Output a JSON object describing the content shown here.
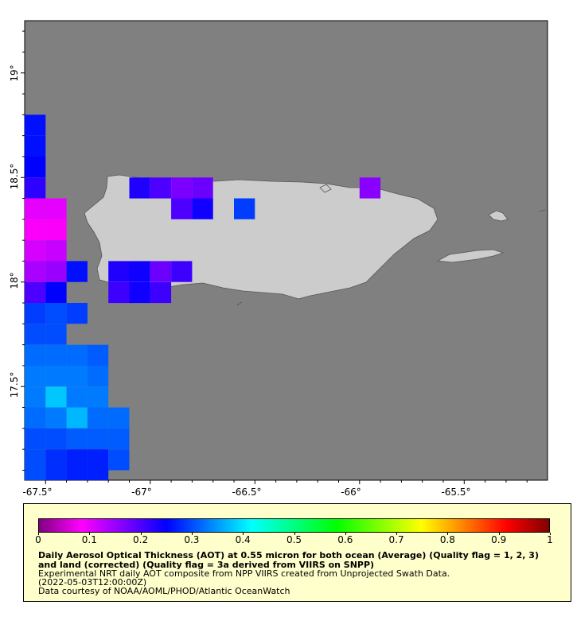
{
  "map": {
    "background_color": "#808080",
    "land_color": "#cccccc",
    "x_ticks": [
      "-67.5°",
      "-67°",
      "-66.5°",
      "-66°",
      "-65.5°"
    ],
    "y_ticks": [
      "19°",
      "18.5°",
      "18°",
      "17.5°"
    ],
    "aot_pixels": [
      {
        "lon": -67.55,
        "lat": 18.75,
        "aot": 0.26
      },
      {
        "lon": -67.55,
        "lat": 18.65,
        "aot": 0.26
      },
      {
        "lon": -67.55,
        "lat": 18.55,
        "aot": 0.25
      },
      {
        "lon": -67.55,
        "lat": 18.45,
        "aot": 0.22
      },
      {
        "lon": -67.55,
        "lat": 18.35,
        "aot": 0.1
      },
      {
        "lon": -67.45,
        "lat": 18.35,
        "aot": 0.1
      },
      {
        "lon": -67.55,
        "lat": 18.25,
        "aot": 0.08
      },
      {
        "lon": -67.45,
        "lat": 18.25,
        "aot": 0.08
      },
      {
        "lon": -67.55,
        "lat": 18.15,
        "aot": 0.11
      },
      {
        "lon": -67.45,
        "lat": 18.15,
        "aot": 0.12
      },
      {
        "lon": -67.55,
        "lat": 18.05,
        "aot": 0.14
      },
      {
        "lon": -67.45,
        "lat": 18.05,
        "aot": 0.15
      },
      {
        "lon": -67.35,
        "lat": 18.05,
        "aot": 0.26
      },
      {
        "lon": -67.55,
        "lat": 17.95,
        "aot": 0.2
      },
      {
        "lon": -67.45,
        "lat": 17.95,
        "aot": 0.25
      },
      {
        "lon": -67.55,
        "lat": 17.85,
        "aot": 0.29
      },
      {
        "lon": -67.45,
        "lat": 17.85,
        "aot": 0.3
      },
      {
        "lon": -67.35,
        "lat": 17.85,
        "aot": 0.29
      },
      {
        "lon": -67.55,
        "lat": 17.75,
        "aot": 0.3
      },
      {
        "lon": -67.45,
        "lat": 17.75,
        "aot": 0.3
      },
      {
        "lon": -67.55,
        "lat": 17.65,
        "aot": 0.32
      },
      {
        "lon": -67.45,
        "lat": 17.65,
        "aot": 0.32
      },
      {
        "lon": -67.35,
        "lat": 17.65,
        "aot": 0.32
      },
      {
        "lon": -67.25,
        "lat": 17.65,
        "aot": 0.31
      },
      {
        "lon": -67.55,
        "lat": 17.55,
        "aot": 0.33
      },
      {
        "lon": -67.45,
        "lat": 17.55,
        "aot": 0.33
      },
      {
        "lon": -67.35,
        "lat": 17.55,
        "aot": 0.33
      },
      {
        "lon": -67.25,
        "lat": 17.55,
        "aot": 0.32
      },
      {
        "lon": -67.55,
        "lat": 17.45,
        "aot": 0.33
      },
      {
        "lon": -67.45,
        "lat": 17.45,
        "aot": 0.38
      },
      {
        "lon": -67.35,
        "lat": 17.45,
        "aot": 0.33
      },
      {
        "lon": -67.25,
        "lat": 17.45,
        "aot": 0.33
      },
      {
        "lon": -67.55,
        "lat": 17.35,
        "aot": 0.32
      },
      {
        "lon": -67.45,
        "lat": 17.35,
        "aot": 0.33
      },
      {
        "lon": -67.35,
        "lat": 17.35,
        "aot": 0.37
      },
      {
        "lon": -67.25,
        "lat": 17.35,
        "aot": 0.32
      },
      {
        "lon": -67.15,
        "lat": 17.35,
        "aot": 0.32
      },
      {
        "lon": -67.55,
        "lat": 17.25,
        "aot": 0.3
      },
      {
        "lon": -67.45,
        "lat": 17.25,
        "aot": 0.3
      },
      {
        "lon": -67.35,
        "lat": 17.25,
        "aot": 0.31
      },
      {
        "lon": -67.25,
        "lat": 17.25,
        "aot": 0.31
      },
      {
        "lon": -67.15,
        "lat": 17.25,
        "aot": 0.31
      },
      {
        "lon": -67.55,
        "lat": 17.15,
        "aot": 0.3
      },
      {
        "lon": -67.45,
        "lat": 17.15,
        "aot": 0.28
      },
      {
        "lon": -67.35,
        "lat": 17.15,
        "aot": 0.27
      },
      {
        "lon": -67.25,
        "lat": 17.15,
        "aot": 0.27
      },
      {
        "lon": -67.15,
        "lat": 17.15,
        "aot": 0.3
      },
      {
        "lon": -67.55,
        "lat": 17.05,
        "aot": 0.3
      },
      {
        "lon": -67.45,
        "lat": 17.05,
        "aot": 0.28
      },
      {
        "lon": -67.35,
        "lat": 17.05,
        "aot": 0.27
      },
      {
        "lon": -67.25,
        "lat": 17.05,
        "aot": 0.27
      },
      {
        "lon": -67.05,
        "lat": 18.45,
        "aot": 0.23
      },
      {
        "lon": -66.95,
        "lat": 18.45,
        "aot": 0.2
      },
      {
        "lon": -66.85,
        "lat": 18.45,
        "aot": 0.17
      },
      {
        "lon": -66.75,
        "lat": 18.45,
        "aot": 0.18
      },
      {
        "lon": -66.85,
        "lat": 18.35,
        "aot": 0.2
      },
      {
        "lon": -66.75,
        "lat": 18.35,
        "aot": 0.24
      },
      {
        "lon": -66.55,
        "lat": 18.35,
        "aot": 0.29
      },
      {
        "lon": -65.95,
        "lat": 18.45,
        "aot": 0.16
      },
      {
        "lon": -67.15,
        "lat": 18.05,
        "aot": 0.23
      },
      {
        "lon": -67.05,
        "lat": 18.05,
        "aot": 0.24
      },
      {
        "lon": -66.95,
        "lat": 18.05,
        "aot": 0.18
      },
      {
        "lon": -66.85,
        "lat": 18.05,
        "aot": 0.21
      },
      {
        "lon": -67.15,
        "lat": 17.95,
        "aot": 0.21
      },
      {
        "lon": -67.05,
        "lat": 17.95,
        "aot": 0.24
      },
      {
        "lon": -66.95,
        "lat": 17.95,
        "aot": 0.21
      }
    ]
  },
  "legend": {
    "colorbar_ticks": [
      "0",
      "0.1",
      "0.2",
      "0.3",
      "0.4",
      "0.5",
      "0.6",
      "0.7",
      "0.8",
      "0.9",
      "1"
    ],
    "colorbar_colors": [
      "#800080",
      "#ff00ff",
      "#8000ff",
      "#0000ff",
      "#0080ff",
      "#00ffff",
      "#00ff80",
      "#00ff00",
      "#80ff00",
      "#ffff00",
      "#ff8000",
      "#ff0000",
      "#800000"
    ],
    "title": "Daily Aerosol Optical Thickness (AOT) at 0.55 micron for both ocean (Average) (Quality flag = 1, 2, 3) and land (corrected) (Quality flag = 3a derived from VIIRS on SNPP)",
    "line1": "Experimental NRT daily AOT composite from NPP VIIRS created from Unprojected Swath Data.",
    "line2": "(2022-05-03T12:00:00Z)",
    "line3": "Data courtesy of NOAA/AOML/PHOD/Atlantic OceanWatch"
  }
}
